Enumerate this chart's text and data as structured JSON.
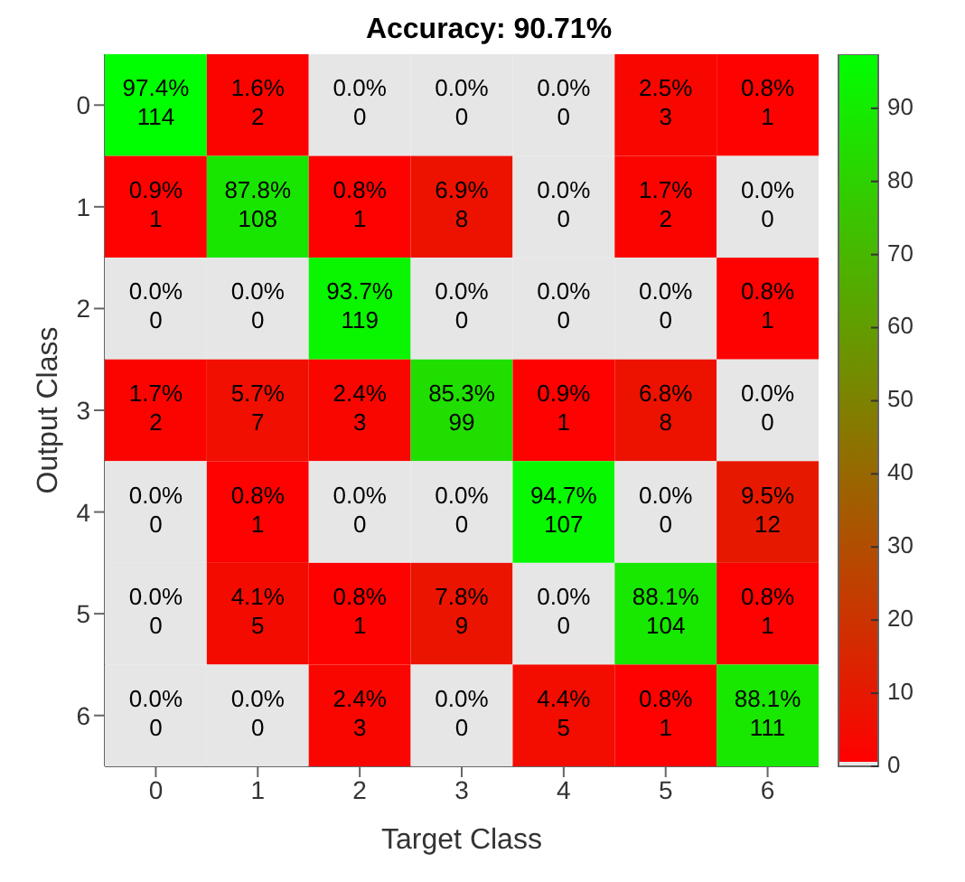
{
  "chart_data": {
    "type": "heatmap",
    "title": "Accuracy: 90.71%",
    "xlabel": "Target Class",
    "ylabel": "Output Class",
    "categories": [
      "0",
      "1",
      "2",
      "3",
      "4",
      "5",
      "6"
    ],
    "y_categories": [
      "0",
      "1",
      "2",
      "3",
      "4",
      "5",
      "6"
    ],
    "cells": [
      [
        97.4,
        1.6,
        0.0,
        0.0,
        0.0,
        2.5,
        0.8
      ],
      [
        0.9,
        87.8,
        0.8,
        6.9,
        0.0,
        1.7,
        0.0
      ],
      [
        0.0,
        0.0,
        93.7,
        0.0,
        0.0,
        0.0,
        0.8
      ],
      [
        1.7,
        5.7,
        2.4,
        85.3,
        0.9,
        6.8,
        0.0
      ],
      [
        0.0,
        0.8,
        0.0,
        0.0,
        94.7,
        0.0,
        9.5
      ],
      [
        0.0,
        4.1,
        0.8,
        7.8,
        0.0,
        88.1,
        0.8
      ],
      [
        0.0,
        0.0,
        2.4,
        0.0,
        4.4,
        0.8,
        88.1
      ]
    ],
    "cell_labels": [
      [
        "97.4%\n114",
        "1.6%\n2",
        "0.0%\n0",
        "0.0%\n0",
        "0.0%\n0",
        "2.5%\n3",
        "0.8%\n1"
      ],
      [
        "0.9%\n1",
        "87.8%\n108",
        "0.8%\n1",
        "6.9%\n8",
        "0.0%\n0",
        "1.7%\n2",
        "0.0%\n0"
      ],
      [
        "0.0%\n0",
        "0.0%\n0",
        "93.7%\n119",
        "0.0%\n0",
        "0.0%\n0",
        "0.0%\n0",
        "0.8%\n1"
      ],
      [
        "1.7%\n2",
        "5.7%\n7",
        "2.4%\n3",
        "85.3%\n99",
        "0.9%\n1",
        "6.8%\n8",
        "0.0%\n0"
      ],
      [
        "0.0%\n0",
        "0.8%\n1",
        "0.0%\n0",
        "0.0%\n0",
        "94.7%\n107",
        "0.0%\n0",
        "9.5%\n12"
      ],
      [
        "0.0%\n0",
        "4.1%\n5",
        "0.8%\n1",
        "7.8%\n9",
        "0.0%\n0",
        "88.1%\n104",
        "0.8%\n1"
      ],
      [
        "0.0%\n0",
        "0.0%\n0",
        "2.4%\n3",
        "0.0%\n0",
        "4.4%\n5",
        "0.8%\n1",
        "88.1%\n111"
      ]
    ],
    "clim": [
      0,
      97.4
    ],
    "cticks": [
      0,
      10,
      20,
      30,
      40,
      50,
      60,
      70,
      80,
      90
    ]
  }
}
